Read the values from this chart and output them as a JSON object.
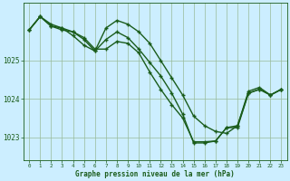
{
  "title": "Graphe pression niveau de la mer (hPa)",
  "bg_color": "#cceeff",
  "plot_bg_color": "#cceeff",
  "line_color": "#1a5c1a",
  "grid_color": "#99bb99",
  "axis_label_color": "#1a5c1a",
  "tick_color": "#1a5c1a",
  "xlim": [
    -0.5,
    23.5
  ],
  "ylim": [
    1022.4,
    1026.5
  ],
  "yticks": [
    1023,
    1024,
    1025
  ],
  "xticks": [
    0,
    1,
    2,
    3,
    4,
    5,
    6,
    7,
    8,
    9,
    10,
    11,
    12,
    13,
    14,
    15,
    16,
    17,
    18,
    19,
    20,
    21,
    22,
    23
  ],
  "series1_x": [
    0,
    1,
    2,
    3,
    4,
    5,
    6,
    7,
    8,
    9,
    10,
    11,
    12,
    13,
    14,
    15,
    16,
    17,
    18,
    19,
    20,
    21,
    22,
    23
  ],
  "series1_y": [
    1025.8,
    1026.15,
    1025.95,
    1025.85,
    1025.65,
    1025.4,
    1025.25,
    1025.55,
    1025.75,
    1025.6,
    1025.3,
    1024.95,
    1024.6,
    1024.15,
    1023.6,
    1022.85,
    1022.85,
    1022.9,
    1023.25,
    1023.25,
    1024.15,
    1024.25,
    1024.1,
    1024.25
  ],
  "series2_x": [
    0,
    1,
    2,
    3,
    4,
    5,
    6,
    7,
    8,
    9,
    10,
    11,
    12,
    13,
    14,
    15,
    16,
    17,
    18,
    19,
    20,
    21,
    22,
    23
  ],
  "series2_y": [
    1025.8,
    1026.15,
    1025.9,
    1025.85,
    1025.75,
    1025.6,
    1025.3,
    1025.3,
    1025.5,
    1025.45,
    1025.2,
    1024.7,
    1024.25,
    1023.85,
    1023.5,
    1022.88,
    1022.88,
    1022.9,
    1023.25,
    1023.3,
    1024.15,
    1024.25,
    1024.1,
    1024.25
  ],
  "series3_x": [
    0,
    1,
    2,
    3,
    4,
    5,
    6,
    7,
    8,
    9,
    10,
    11,
    12,
    13,
    14,
    15,
    16,
    17,
    18,
    19,
    20,
    21,
    22,
    23
  ],
  "series3_y": [
    1025.8,
    1026.15,
    1025.9,
    1025.8,
    1025.75,
    1025.55,
    1025.25,
    1025.85,
    1026.05,
    1025.95,
    1025.75,
    1025.45,
    1025.0,
    1024.55,
    1024.1,
    1023.55,
    1023.3,
    1023.15,
    1023.1,
    1023.3,
    1024.2,
    1024.3,
    1024.1,
    1024.25
  ],
  "marker": "+",
  "marker_size": 3.5,
  "linewidth": 1.0
}
